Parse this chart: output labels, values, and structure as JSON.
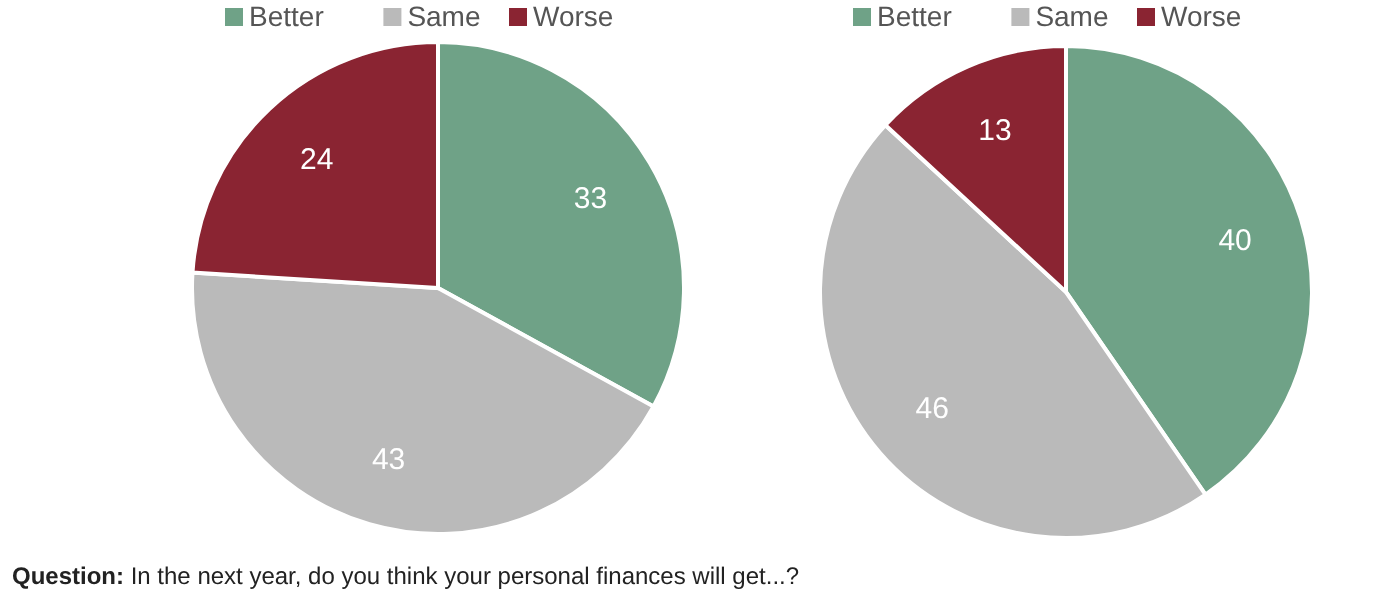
{
  "chart_data": [
    {
      "type": "pie",
      "categories": [
        "Better",
        "Same",
        "Worse"
      ],
      "values": [
        33,
        43,
        24
      ],
      "colors": [
        "#6fa287",
        "#bababa",
        "#8a2432"
      ],
      "data_labels": true,
      "legend": "top",
      "annotations": [
        "Question: In the next year, do you think your personal finances will get...?"
      ]
    },
    {
      "type": "pie",
      "categories": [
        "Better",
        "Same",
        "Worse"
      ],
      "values": [
        40,
        46,
        13
      ],
      "colors": [
        "#6fa287",
        "#bababa",
        "#8a2432"
      ],
      "data_labels": true,
      "legend": "top"
    }
  ]
}
